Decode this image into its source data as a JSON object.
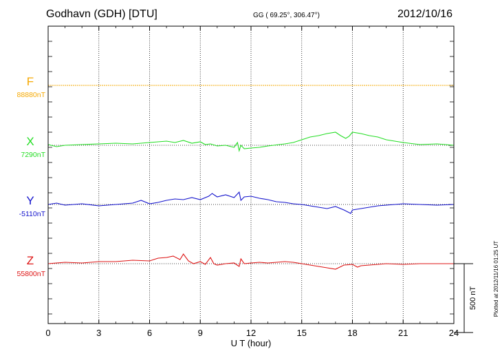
{
  "header": {
    "station": "Godhavn (GDH)  [DTU]",
    "coords": "GG ( 69.25°, 306.47°)",
    "date": "2012/10/16"
  },
  "plot_note": "Plotted at 2012/11/16 01:25 UT",
  "chart_data": {
    "type": "line",
    "title": "Godhavn (GDH)  [DTU]",
    "xlabel": "U T (hour)",
    "xlim": [
      0,
      24
    ],
    "xticks": [
      0,
      3,
      6,
      9,
      12,
      15,
      18,
      21,
      24
    ],
    "grid": true,
    "scale_bar": {
      "label": "500 nT",
      "value_nT": 500
    },
    "series": [
      {
        "name": "F",
        "baseline_label": "88880nT",
        "baseline_nT": 88880,
        "color": "#f5a800",
        "x": [
          0,
          6,
          12,
          18,
          24
        ],
        "y": [
          88880,
          88880,
          88880,
          88880,
          88880
        ]
      },
      {
        "name": "X",
        "baseline_label": "7290nT",
        "baseline_nT": 7290,
        "color": "#22dd22",
        "x": [
          0,
          0.5,
          1,
          2,
          3,
          4,
          5,
          6,
          6.5,
          7,
          7.5,
          8,
          8.5,
          9,
          9.3,
          9.6,
          10,
          10.5,
          11,
          11.2,
          11.3,
          11.4,
          11.6,
          12,
          12.5,
          13,
          14,
          14.5,
          15,
          15.5,
          16,
          16.5,
          17,
          17.3,
          17.6,
          17.8,
          18,
          18.5,
          19,
          19.5,
          20,
          20.5,
          21,
          22,
          23,
          24
        ],
        "y": [
          7295,
          7280,
          7290,
          7295,
          7300,
          7305,
          7300,
          7310,
          7315,
          7320,
          7310,
          7325,
          7305,
          7315,
          7295,
          7300,
          7285,
          7290,
          7275,
          7310,
          7250,
          7290,
          7265,
          7270,
          7275,
          7285,
          7300,
          7310,
          7330,
          7350,
          7360,
          7375,
          7385,
          7360,
          7340,
          7355,
          7385,
          7375,
          7360,
          7350,
          7330,
          7320,
          7310,
          7295,
          7300,
          7290
        ]
      },
      {
        "name": "Y",
        "baseline_label": "-5110nT",
        "baseline_nT": -5110,
        "color": "#1111cc",
        "x": [
          0,
          0.5,
          1,
          2,
          3,
          4,
          5,
          5.5,
          6,
          6.5,
          7,
          7.5,
          8,
          8.5,
          9,
          9.5,
          9.7,
          10,
          10.5,
          11,
          11.3,
          11.4,
          11.6,
          12,
          12.5,
          13,
          13.5,
          14,
          14.5,
          15,
          15.5,
          16,
          16.5,
          17,
          17.5,
          17.9,
          18,
          18.5,
          19,
          19.5,
          20,
          21,
          22,
          23,
          24
        ],
        "y": [
          -5110,
          -5100,
          -5115,
          -5105,
          -5120,
          -5110,
          -5100,
          -5080,
          -5105,
          -5095,
          -5080,
          -5070,
          -5075,
          -5060,
          -5075,
          -5050,
          -5030,
          -5055,
          -5040,
          -5060,
          -5020,
          -5080,
          -5055,
          -5050,
          -5065,
          -5075,
          -5090,
          -5095,
          -5105,
          -5110,
          -5120,
          -5130,
          -5140,
          -5125,
          -5150,
          -5175,
          -5150,
          -5140,
          -5130,
          -5120,
          -5115,
          -5105,
          -5110,
          -5115,
          -5110
        ]
      },
      {
        "name": "Z",
        "baseline_label": "55800nT",
        "baseline_nT": 55800,
        "color": "#dd1111",
        "x": [
          0,
          1,
          2,
          3,
          4,
          5,
          6,
          6.5,
          7,
          7.4,
          7.8,
          8,
          8.3,
          8.6,
          9,
          9.3,
          9.6,
          9.8,
          10,
          10.5,
          11,
          11.3,
          11.4,
          11.6,
          12,
          12.5,
          13,
          14,
          14.5,
          15,
          15.5,
          16,
          16.5,
          17,
          17.5,
          18,
          18.3,
          18.5,
          19,
          20,
          21,
          22,
          23,
          24
        ],
        "y": [
          55800,
          55810,
          55805,
          55815,
          55815,
          55825,
          55820,
          55840,
          55845,
          55855,
          55830,
          55870,
          55820,
          55800,
          55815,
          55795,
          55845,
          55800,
          55790,
          55800,
          55805,
          55780,
          55835,
          55800,
          55805,
          55810,
          55805,
          55815,
          55810,
          55800,
          55790,
          55780,
          55770,
          55760,
          55790,
          55795,
          55775,
          55785,
          55790,
          55800,
          55795,
          55800,
          55800,
          55800
        ]
      }
    ]
  }
}
